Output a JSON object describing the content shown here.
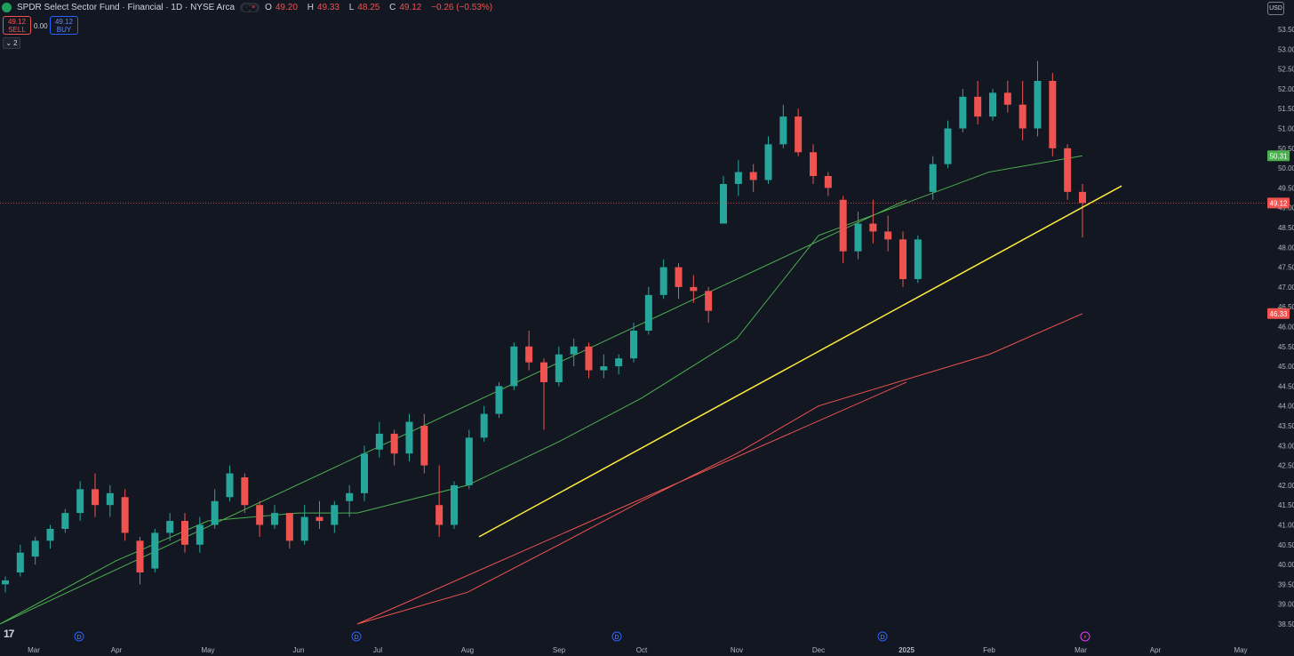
{
  "header": {
    "symbol_title": "SPDR Select Sector Fund · Financial · 1D · NYSE Arca",
    "open_label": "O",
    "open": "49.20",
    "high_label": "H",
    "high": "49.33",
    "low_label": "L",
    "low": "48.25",
    "close_label": "C",
    "close": "49.12",
    "change": "−0.26 (−0.53%)",
    "collapse_count": "2"
  },
  "trade": {
    "sell_price": "49.12",
    "sell_label": "SELL",
    "buy_price": "49.12",
    "buy_label": "BUY",
    "spread": "0.00"
  },
  "currency": "USD",
  "colors": {
    "background": "#131722",
    "up": "#26a69a",
    "down": "#ef5350",
    "sma_fast": "#4caf50",
    "sma_slow": "#ef5350",
    "trendline": "#ffeb3b",
    "last_price_line": "#ef5350"
  },
  "chart_data": {
    "type": "candlestick",
    "y_axis": {
      "min": 38.5,
      "max": 53.5,
      "step": 0.5,
      "ticks": [
        "53.50",
        "53.00",
        "52.50",
        "52.00",
        "51.50",
        "51.00",
        "50.50",
        "50.00",
        "49.50",
        "49.00",
        "48.50",
        "48.00",
        "47.50",
        "47.00",
        "46.50",
        "46.00",
        "45.50",
        "45.00",
        "44.50",
        "44.00",
        "43.50",
        "43.00",
        "42.50",
        "42.00",
        "41.50",
        "41.00",
        "40.50",
        "40.00",
        "39.50",
        "39.00",
        "38.50"
      ]
    },
    "x_axis": {
      "labels": [
        "Mar",
        "Apr",
        "May",
        "Jun",
        "Jul",
        "Aug",
        "Sep",
        "Oct",
        "Nov",
        "Dec",
        "2025",
        "Feb",
        "Mar",
        "Apr",
        "May"
      ]
    },
    "price_labels": [
      {
        "value": 50.31,
        "text": "50.31",
        "color": "#4caf50"
      },
      {
        "value": 49.12,
        "text": "49.12",
        "color": "#ef5350"
      },
      {
        "value": 46.33,
        "text": "46.33",
        "color": "#ef5350"
      }
    ],
    "last_price": 49.12,
    "dividend_markers": [
      "Mar",
      "Jun",
      "Sep",
      "Dec"
    ],
    "dividend_label": "D",
    "earnings_marker": {
      "month": "Mar 2025",
      "label": "⚡"
    },
    "trendline": {
      "from": [
        "2024-08-05",
        40.7
      ],
      "to": [
        "2025-03-24",
        49.55
      ]
    },
    "series": [
      {
        "name": "SMA fast",
        "values_at_month": {
          "Mar": 38.5,
          "Apr": 40.1,
          "May": 41.1,
          "Jun": 41.3,
          "Jul": 41.3,
          "Aug": 42.0,
          "Sep": 43.1,
          "Oct": 44.2,
          "Nov": 45.7,
          "Dec": 48.3,
          "2025": 49.2,
          "Feb": 49.9,
          "Mar 2025": 50.31
        }
      },
      {
        "name": "SMA slow",
        "values_at_month": {
          "Jul": 38.5,
          "Aug": 39.3,
          "Sep": 40.5,
          "Oct": 41.6,
          "Nov": 42.8,
          "Dec": 44.0,
          "2025": 44.6,
          "Feb": 45.3,
          "Mar 2025": 46.33
        }
      }
    ],
    "candles_weekly_approx": [
      [
        39.5,
        39.7,
        39.3,
        39.6
      ],
      [
        39.8,
        40.5,
        39.7,
        40.3
      ],
      [
        40.2,
        40.7,
        40.0,
        40.6
      ],
      [
        40.6,
        41.0,
        40.4,
        40.9
      ],
      [
        40.9,
        41.4,
        40.8,
        41.3
      ],
      [
        41.3,
        42.1,
        41.1,
        41.9
      ],
      [
        41.9,
        42.3,
        41.2,
        41.5
      ],
      [
        41.5,
        42.0,
        41.2,
        41.8
      ],
      [
        41.7,
        41.9,
        40.6,
        40.8
      ],
      [
        40.6,
        40.7,
        39.5,
        39.8
      ],
      [
        39.9,
        40.9,
        39.8,
        40.8
      ],
      [
        40.8,
        41.3,
        40.6,
        41.1
      ],
      [
        41.1,
        41.3,
        40.3,
        40.5
      ],
      [
        40.5,
        41.2,
        40.3,
        41.0
      ],
      [
        41.0,
        41.9,
        40.9,
        41.6
      ],
      [
        41.7,
        42.5,
        41.6,
        42.3
      ],
      [
        42.2,
        42.3,
        41.3,
        41.5
      ],
      [
        41.5,
        41.6,
        40.7,
        41.0
      ],
      [
        41.0,
        41.5,
        40.9,
        41.3
      ],
      [
        41.3,
        41.3,
        40.4,
        40.6
      ],
      [
        40.6,
        41.5,
        40.5,
        41.2
      ],
      [
        41.2,
        41.6,
        40.9,
        41.1
      ],
      [
        41.0,
        41.6,
        40.8,
        41.5
      ],
      [
        41.6,
        42.0,
        41.2,
        41.8
      ],
      [
        41.8,
        43.0,
        41.6,
        42.8
      ],
      [
        42.9,
        43.6,
        42.7,
        43.3
      ],
      [
        43.3,
        43.4,
        42.5,
        42.8
      ],
      [
        42.8,
        43.8,
        42.6,
        43.6
      ],
      [
        43.5,
        43.8,
        42.3,
        42.5
      ],
      [
        41.5,
        42.5,
        40.7,
        41.0
      ],
      [
        41.0,
        42.1,
        40.9,
        42.0
      ],
      [
        42.0,
        43.4,
        41.9,
        43.2
      ],
      [
        43.2,
        44.0,
        43.1,
        43.8
      ],
      [
        43.8,
        44.6,
        43.7,
        44.5
      ],
      [
        44.5,
        45.6,
        44.4,
        45.5
      ],
      [
        45.5,
        45.9,
        44.9,
        45.1
      ],
      [
        45.1,
        45.2,
        43.4,
        44.6
      ],
      [
        44.6,
        45.5,
        44.5,
        45.3
      ],
      [
        45.3,
        45.7,
        45.0,
        45.5
      ],
      [
        45.5,
        45.6,
        44.7,
        44.9
      ],
      [
        44.9,
        45.3,
        44.7,
        45.0
      ],
      [
        45.0,
        45.3,
        44.8,
        45.2
      ],
      [
        45.2,
        46.1,
        45.1,
        45.9
      ],
      [
        45.9,
        47.0,
        45.8,
        46.8
      ],
      [
        46.8,
        47.7,
        46.7,
        47.5
      ],
      [
        47.5,
        47.6,
        46.7,
        47.0
      ],
      [
        47.0,
        47.3,
        46.6,
        46.9
      ],
      [
        46.9,
        47.0,
        46.1,
        46.4
      ],
      [
        48.6,
        49.8,
        48.6,
        49.6
      ],
      [
        49.6,
        50.2,
        49.3,
        49.9
      ],
      [
        49.9,
        50.1,
        49.4,
        49.7
      ],
      [
        49.7,
        50.8,
        49.6,
        50.6
      ],
      [
        50.6,
        51.6,
        50.5,
        51.3
      ],
      [
        51.3,
        51.5,
        50.3,
        50.4
      ],
      [
        50.4,
        50.6,
        49.6,
        49.8
      ],
      [
        49.8,
        49.9,
        49.3,
        49.5
      ],
      [
        49.2,
        49.3,
        47.6,
        47.9
      ],
      [
        47.9,
        48.9,
        47.7,
        48.6
      ],
      [
        48.6,
        49.2,
        48.1,
        48.4
      ],
      [
        48.4,
        48.8,
        47.9,
        48.2
      ],
      [
        48.2,
        48.4,
        47.0,
        47.2
      ],
      [
        47.2,
        48.3,
        47.1,
        48.2
      ],
      [
        49.4,
        50.3,
        49.2,
        50.1
      ],
      [
        50.1,
        51.2,
        50.0,
        51.0
      ],
      [
        51.0,
        52.0,
        50.9,
        51.8
      ],
      [
        51.8,
        52.2,
        51.1,
        51.3
      ],
      [
        51.3,
        52.0,
        51.2,
        51.9
      ],
      [
        51.9,
        52.2,
        51.4,
        51.6
      ],
      [
        51.6,
        52.2,
        50.7,
        51.0
      ],
      [
        51.0,
        52.7,
        50.8,
        52.2
      ],
      [
        52.2,
        52.4,
        50.3,
        50.5
      ],
      [
        50.5,
        50.6,
        49.2,
        49.4
      ],
      [
        49.4,
        49.6,
        48.25,
        49.12
      ]
    ]
  }
}
